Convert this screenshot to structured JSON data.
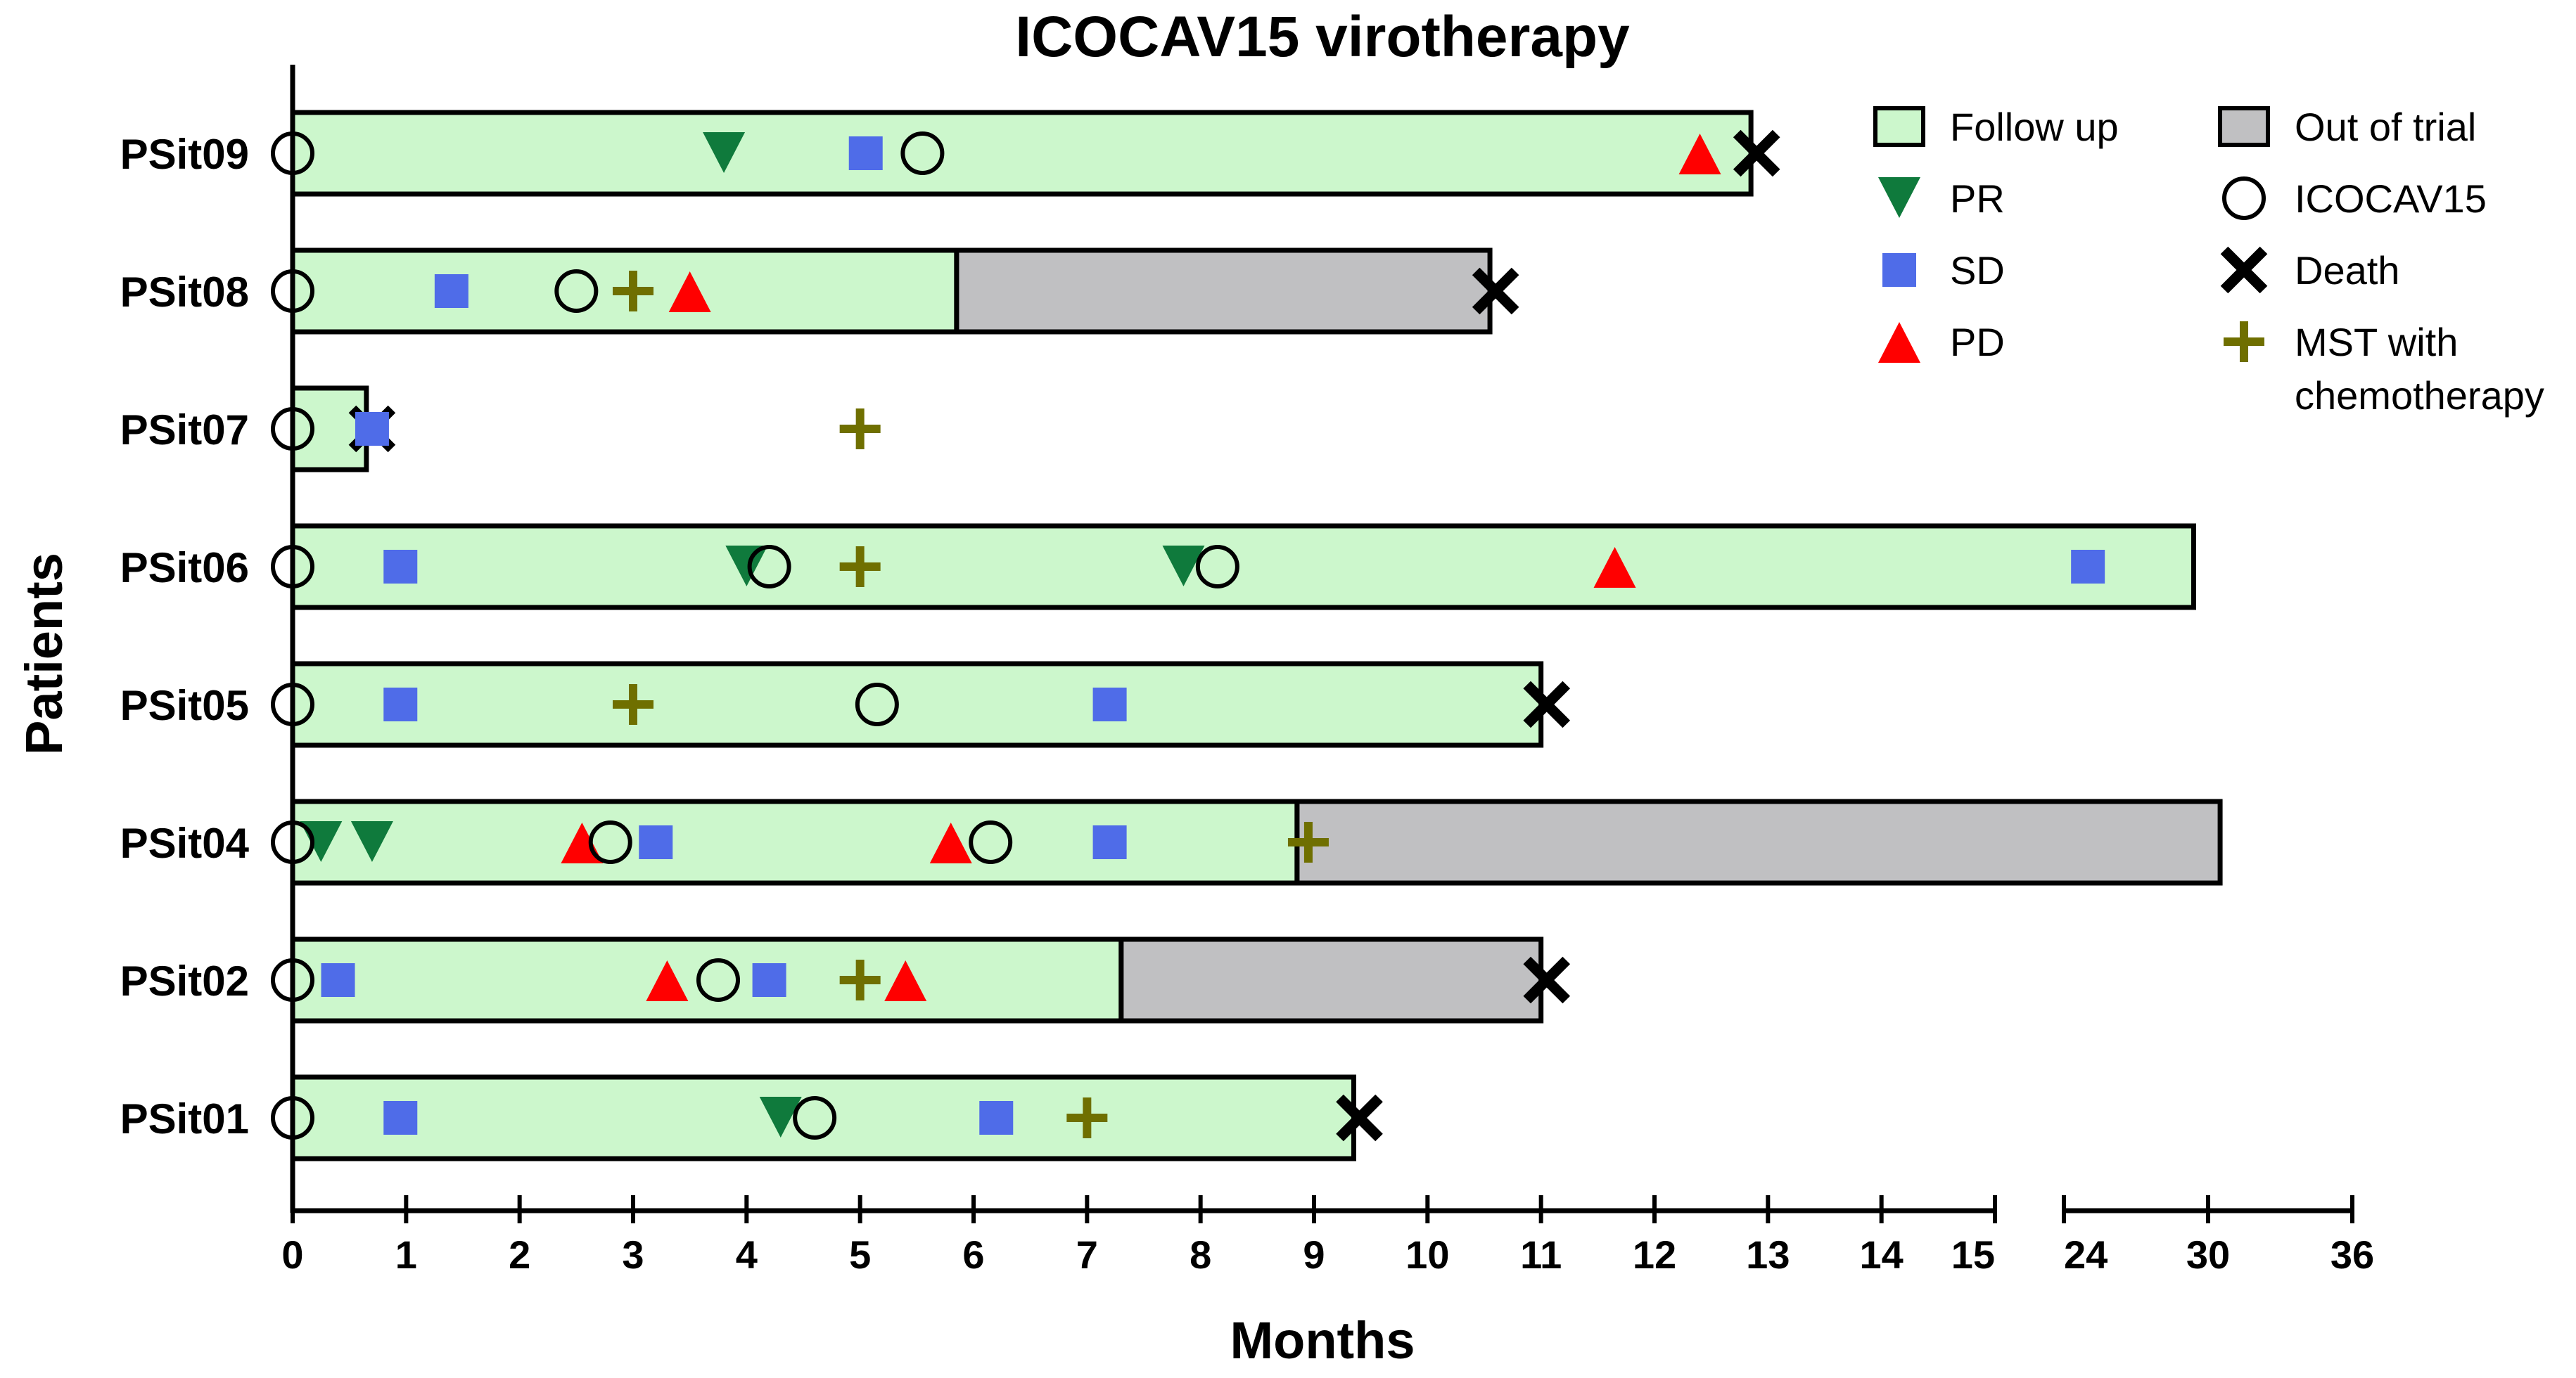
{
  "chart_data": {
    "type": "swimmer",
    "title": "ICOCAV15 virotherapy",
    "xlabel": "Months",
    "ylabel": "Patients",
    "x_axis": {
      "segment_1": {
        "range": [
          0,
          15
        ],
        "ticks": [
          0,
          1,
          2,
          3,
          4,
          5,
          6,
          7,
          8,
          9,
          10,
          11,
          12,
          13,
          14,
          15
        ]
      },
      "segment_2": {
        "range": [
          24,
          36
        ],
        "ticks": [
          24,
          30,
          36
        ]
      }
    },
    "colors": {
      "follow_up": "#ccf7cc",
      "out_of_trial": "#c0c0c2",
      "pr": "#0f7a3c",
      "sd": "#4f6ce8",
      "pd": "#ff0000",
      "mst": "#6f6f00",
      "death": "#000000"
    },
    "legend": [
      {
        "key": "follow_up",
        "label": "Follow up"
      },
      {
        "key": "pr",
        "label": "PR"
      },
      {
        "key": "sd",
        "label": "SD"
      },
      {
        "key": "pd",
        "label": "PD"
      },
      {
        "key": "out_of_trial",
        "label": "Out of trial"
      },
      {
        "key": "icocav15",
        "label": "ICOCAV15"
      },
      {
        "key": "death",
        "label": "Death"
      },
      {
        "key": "mst",
        "label": "MST with chemotherapy"
      }
    ],
    "patients": [
      {
        "id": "PSit09",
        "follow_up_end": 12.85,
        "out_of_trial_end": null,
        "death": 12.9,
        "icocav15": [
          0,
          5.55
        ],
        "pr": [
          3.8
        ],
        "sd": [
          5.05
        ],
        "pd": [
          12.4
        ],
        "mst": []
      },
      {
        "id": "PSit08",
        "follow_up_end": 5.85,
        "out_of_trial_end": 10.55,
        "death": 10.6,
        "icocav15": [
          0,
          2.5
        ],
        "pr": [],
        "sd": [
          1.4
        ],
        "pd": [
          3.5
        ],
        "mst": [
          3.0
        ]
      },
      {
        "id": "PSit07",
        "follow_up_end": 0.65,
        "out_of_trial_end": null,
        "death": 0.7,
        "icocav15": [
          0
        ],
        "pr": [],
        "sd": [
          0.7
        ],
        "pd": [],
        "mst": [
          5.0
        ]
      },
      {
        "id": "PSit06",
        "follow_up_end": 29.4,
        "out_of_trial_end": null,
        "death": null,
        "icocav15": [
          0,
          4.2,
          8.15
        ],
        "pr": [
          4.0,
          7.85
        ],
        "sd": [
          0.95,
          25.0
        ],
        "pd": [
          11.65
        ],
        "mst": [
          5.0
        ]
      },
      {
        "id": "PSit05",
        "follow_up_end": 11.0,
        "out_of_trial_end": null,
        "death": 11.05,
        "icocav15": [
          0,
          5.15
        ],
        "pr": [],
        "sd": [
          0.95,
          7.2
        ],
        "pd": [],
        "mst": [
          3.0
        ]
      },
      {
        "id": "PSit04",
        "follow_up_end": 8.85,
        "out_of_trial_end": 30.5,
        "death": null,
        "icocav15": [
          0,
          2.8,
          6.15
        ],
        "pr": [
          0.25,
          0.7
        ],
        "sd": [
          3.2,
          7.2
        ],
        "pd": [
          2.55,
          5.8
        ],
        "mst": [
          8.95
        ]
      },
      {
        "id": "PSit02",
        "follow_up_end": 7.3,
        "out_of_trial_end": 11.0,
        "death": 11.05,
        "icocav15": [
          0,
          3.75
        ],
        "pr": [],
        "sd": [
          0.4,
          4.2
        ],
        "pd": [
          3.3,
          5.4
        ],
        "mst": [
          5.0
        ]
      },
      {
        "id": "PSit01",
        "follow_up_end": 9.35,
        "out_of_trial_end": null,
        "death": 9.4,
        "icocav15": [
          0,
          4.6
        ],
        "pr": [
          4.3
        ],
        "sd": [
          0.95,
          6.2
        ],
        "pd": [],
        "mst": [
          7.0
        ]
      }
    ]
  }
}
